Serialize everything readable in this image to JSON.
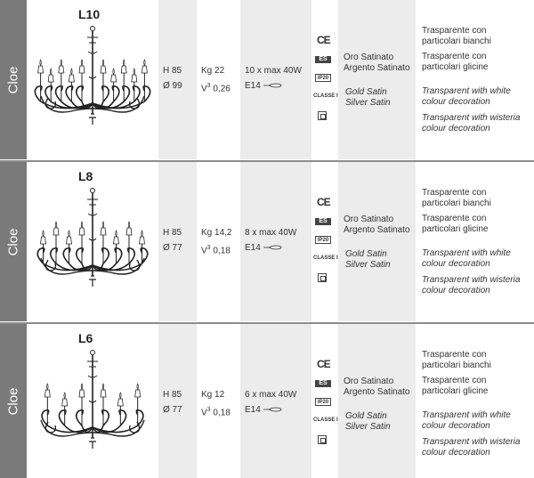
{
  "family": "Cloe",
  "cert": {
    "ce": "CE",
    "es": "ES",
    "ip": "IP20",
    "class": "CLASSE I"
  },
  "products": [
    {
      "model": "L10",
      "height": "H 85",
      "diameter": "Ø 99",
      "weight": "Kg 22",
      "volume_unit": "V",
      "volume_exp": "3",
      "volume_value": " 0,26",
      "bulbs": "10 x max 40W",
      "socket": "E14",
      "arms": 10,
      "finish_it": [
        "Oro Satinato",
        "Argento Satinato"
      ],
      "finish_en": [
        "Gold Satin",
        "Silver Satin"
      ],
      "decor_it": [
        [
          "Trasparente con",
          "particolari bianchi"
        ],
        [
          "Trasparente con",
          "particolari glicine"
        ]
      ],
      "decor_en": [
        [
          "Transparent with white",
          "colour decoration"
        ],
        [
          "Transparent with wisteria",
          "colour decoration"
        ]
      ]
    },
    {
      "model": "L8",
      "height": "H 85",
      "diameter": "Ø 77",
      "weight": "Kg 14,2",
      "volume_unit": "V",
      "volume_exp": "3",
      "volume_value": " 0,18",
      "bulbs": "8 x max 40W",
      "socket": "E14",
      "arms": 8,
      "finish_it": [
        "Oro Satinato",
        "Argento Satinato"
      ],
      "finish_en": [
        "Gold Satin",
        "Silver Satin"
      ],
      "decor_it": [
        [
          "Trasparente con",
          "particolari bianchi"
        ],
        [
          "Trasparente con",
          "particolari glicine"
        ]
      ],
      "decor_en": [
        [
          "Transparent with white",
          "colour decoration"
        ],
        [
          "Transparent with wisteria",
          "colour decoration"
        ]
      ]
    },
    {
      "model": "L6",
      "height": "H 85",
      "diameter": "Ø 77",
      "weight": "Kg 12",
      "volume_unit": "V",
      "volume_exp": "3",
      "volume_value": " 0,18",
      "bulbs": "6 x max 40W",
      "socket": "E14",
      "arms": 6,
      "finish_it": [
        "Oro Satinato",
        "Argento Satinato"
      ],
      "finish_en": [
        "Gold Satin",
        "Silver Satin"
      ],
      "decor_it": [
        [
          "Trasparente con",
          "particolari bianchi"
        ],
        [
          "Trasparente con",
          "particolari glicine"
        ]
      ],
      "decor_en": [
        [
          "Transparent with white",
          "colour decoration"
        ],
        [
          "Transparent with wisteria",
          "colour decoration"
        ]
      ]
    }
  ]
}
